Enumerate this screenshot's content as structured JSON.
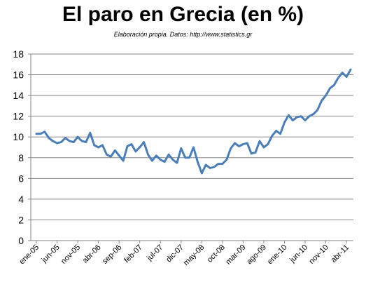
{
  "chart_data": {
    "type": "line",
    "title": "El paro en Grecia (en %)",
    "subtitle": "Elaboración propia. Datos: http://www.statistics.gr",
    "ylim": [
      0,
      18
    ],
    "yticks": [
      0,
      2,
      4,
      6,
      8,
      10,
      12,
      14,
      16,
      18
    ],
    "grid": true,
    "legend": "none",
    "series_color": "#4a7ebb",
    "x_tick_labels": [
      "ene-05",
      "jun-05",
      "nov-05",
      "abr-06",
      "sep-06",
      "feb-07",
      "jul-07",
      "dic-07",
      "may-08",
      "oct-08",
      "mar-09",
      "ago-09",
      "ene-10",
      "jun-10",
      "nov-10",
      "abr-11"
    ],
    "x": [
      "ene-05",
      "feb-05",
      "mar-05",
      "abr-05",
      "may-05",
      "jun-05",
      "jul-05",
      "ago-05",
      "sep-05",
      "oct-05",
      "nov-05",
      "dic-05",
      "ene-06",
      "feb-06",
      "mar-06",
      "abr-06",
      "may-06",
      "jun-06",
      "jul-06",
      "ago-06",
      "sep-06",
      "oct-06",
      "nov-06",
      "dic-06",
      "ene-07",
      "feb-07",
      "mar-07",
      "abr-07",
      "may-07",
      "jun-07",
      "jul-07",
      "ago-07",
      "sep-07",
      "oct-07",
      "nov-07",
      "dic-07",
      "ene-08",
      "feb-08",
      "mar-08",
      "abr-08",
      "may-08",
      "jun-08",
      "jul-08",
      "ago-08",
      "sep-08",
      "oct-08",
      "nov-08",
      "dic-08",
      "ene-09",
      "feb-09",
      "mar-09",
      "abr-09",
      "may-09",
      "jun-09",
      "jul-09",
      "ago-09",
      "sep-09",
      "oct-09",
      "nov-09",
      "dic-09",
      "ene-10",
      "feb-10",
      "mar-10",
      "abr-10",
      "may-10",
      "jun-10",
      "jul-10",
      "ago-10",
      "sep-10",
      "oct-10",
      "nov-10",
      "dic-10",
      "ene-11",
      "feb-11",
      "mar-11",
      "abr-11",
      "may-11"
    ],
    "values": [
      10.3,
      10.3,
      10.5,
      9.9,
      9.6,
      9.4,
      9.5,
      9.9,
      9.6,
      9.5,
      10.0,
      9.6,
      9.5,
      10.4,
      9.2,
      9.0,
      9.2,
      8.3,
      8.1,
      8.7,
      8.2,
      7.7,
      9.1,
      9.3,
      8.6,
      9.0,
      9.5,
      8.3,
      7.7,
      8.2,
      7.8,
      7.6,
      8.3,
      7.8,
      7.5,
      8.9,
      8.0,
      8.0,
      9.0,
      7.6,
      6.5,
      7.3,
      7.0,
      7.1,
      7.4,
      7.4,
      7.8,
      8.9,
      9.4,
      9.1,
      9.3,
      9.4,
      8.4,
      8.5,
      9.6,
      9.0,
      9.3,
      10.1,
      10.6,
      10.3,
      11.4,
      12.1,
      11.6,
      11.9,
      12.0,
      11.6,
      12.0,
      12.2,
      12.6,
      13.5,
      14.0,
      14.7,
      15.0,
      15.7,
      16.2,
      15.8,
      16.5
    ]
  }
}
